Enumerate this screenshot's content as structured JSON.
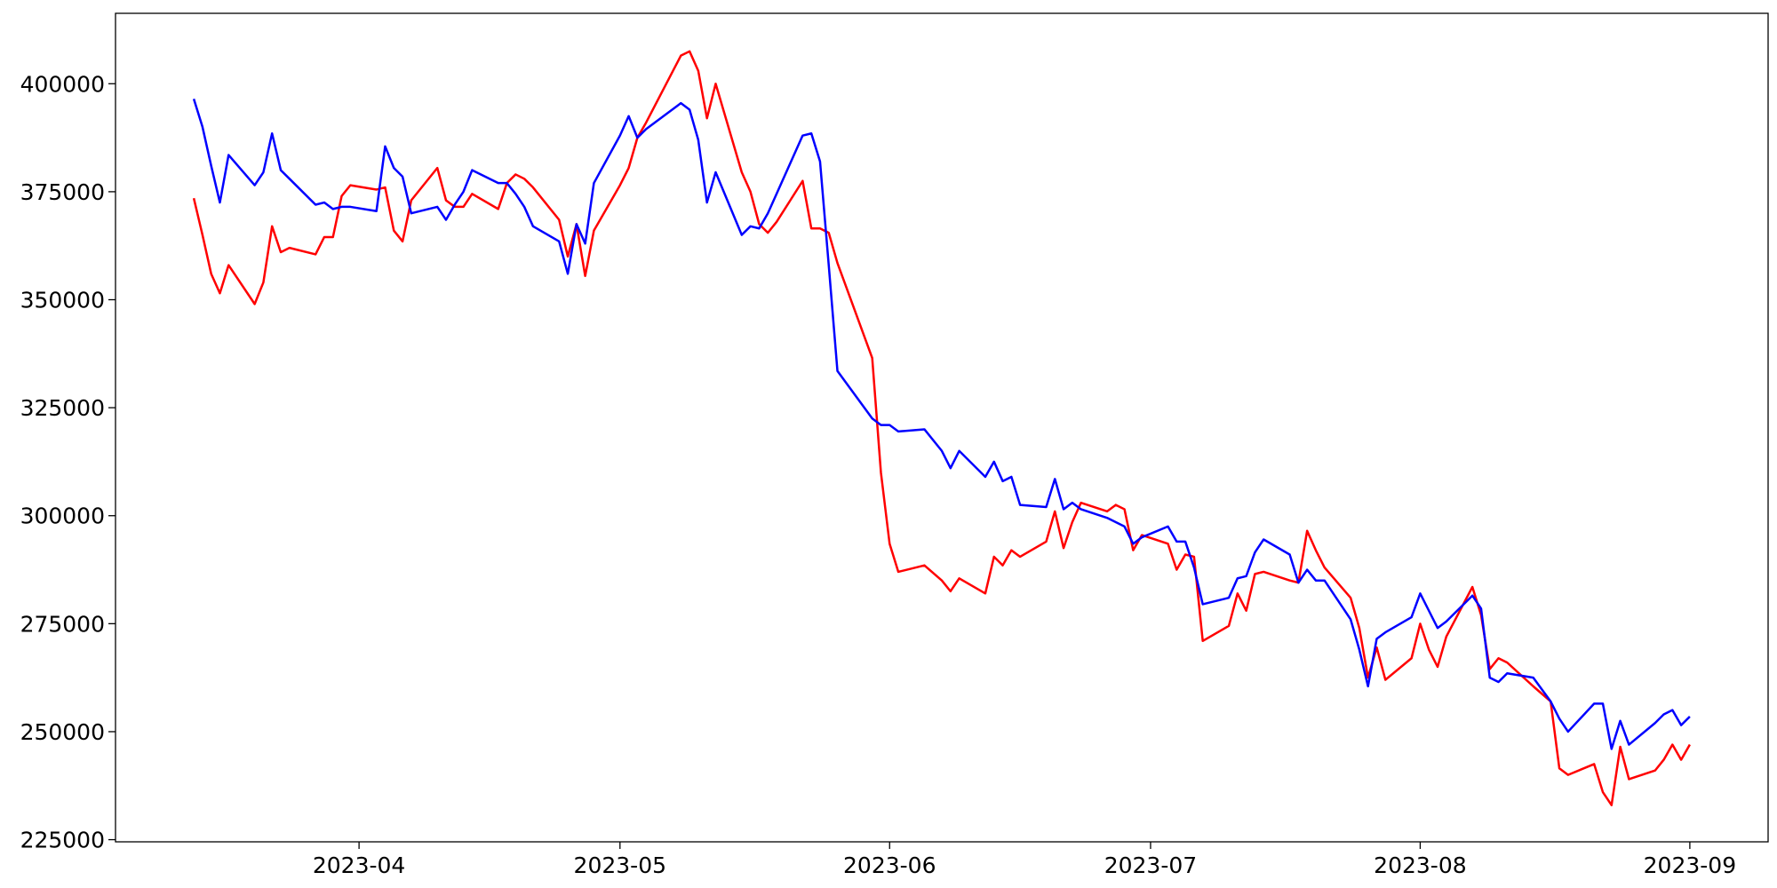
{
  "chart_data": {
    "type": "line",
    "x": [
      "2023-03-13",
      "2023-03-14",
      "2023-03-15",
      "2023-03-16",
      "2023-03-17",
      "2023-03-20",
      "2023-03-21",
      "2023-03-22",
      "2023-03-23",
      "2023-03-24",
      "2023-03-27",
      "2023-03-28",
      "2023-03-29",
      "2023-03-30",
      "2023-03-31",
      "2023-04-03",
      "2023-04-04",
      "2023-04-05",
      "2023-04-06",
      "2023-04-07",
      "2023-04-10",
      "2023-04-11",
      "2023-04-12",
      "2023-04-13",
      "2023-04-14",
      "2023-04-17",
      "2023-04-18",
      "2023-04-19",
      "2023-04-20",
      "2023-04-21",
      "2023-04-24",
      "2023-04-25",
      "2023-04-26",
      "2023-04-27",
      "2023-04-28",
      "2023-05-01",
      "2023-05-02",
      "2023-05-03",
      "2023-05-04",
      "2023-05-08",
      "2023-05-09",
      "2023-05-10",
      "2023-05-11",
      "2023-05-12",
      "2023-05-15",
      "2023-05-16",
      "2023-05-17",
      "2023-05-18",
      "2023-05-19",
      "2023-05-22",
      "2023-05-23",
      "2023-05-24",
      "2023-05-25",
      "2023-05-26",
      "2023-05-30",
      "2023-05-31",
      "2023-06-01",
      "2023-06-02",
      "2023-06-05",
      "2023-06-07",
      "2023-06-08",
      "2023-06-09",
      "2023-06-12",
      "2023-06-13",
      "2023-06-14",
      "2023-06-15",
      "2023-06-16",
      "2023-06-19",
      "2023-06-20",
      "2023-06-21",
      "2023-06-22",
      "2023-06-23",
      "2023-06-26",
      "2023-06-27",
      "2023-06-28",
      "2023-06-29",
      "2023-06-30",
      "2023-07-03",
      "2023-07-04",
      "2023-07-05",
      "2023-07-06",
      "2023-07-07",
      "2023-07-10",
      "2023-07-11",
      "2023-07-12",
      "2023-07-13",
      "2023-07-14",
      "2023-07-17",
      "2023-07-18",
      "2023-07-19",
      "2023-07-20",
      "2023-07-21",
      "2023-07-24",
      "2023-07-25",
      "2023-07-26",
      "2023-07-27",
      "2023-07-28",
      "2023-07-31",
      "2023-08-01",
      "2023-08-02",
      "2023-08-03",
      "2023-08-04",
      "2023-08-07",
      "2023-08-08",
      "2023-08-09",
      "2023-08-10",
      "2023-08-11",
      "2023-08-14",
      "2023-08-16",
      "2023-08-17",
      "2023-08-18",
      "2023-08-21",
      "2023-08-22",
      "2023-08-23",
      "2023-08-24",
      "2023-08-25",
      "2023-08-28",
      "2023-08-29",
      "2023-08-30",
      "2023-08-31",
      "2023-09-01"
    ],
    "series": [
      {
        "color": "#ff0000",
        "values": [
          373500,
          365000,
          356000,
          351500,
          358000,
          349000,
          354000,
          367000,
          361000,
          362000,
          360500,
          364500,
          364500,
          374000,
          376500,
          375500,
          376000,
          366000,
          363500,
          373000,
          380500,
          373000,
          371500,
          371500,
          374500,
          371000,
          377000,
          379000,
          378000,
          376000,
          368500,
          360000,
          367500,
          355500,
          366000,
          376500,
          380500,
          387500,
          391000,
          406500,
          407500,
          403000,
          392000,
          400000,
          379500,
          375000,
          367500,
          365500,
          368000,
          377500,
          366500,
          366500,
          365500,
          358500,
          336500,
          310000,
          293500,
          287000,
          288500,
          285000,
          282500,
          285500,
          282000,
          290500,
          288500,
          292000,
          290500,
          294000,
          301000,
          292500,
          298500,
          303000,
          301000,
          302500,
          301500,
          292000,
          295500,
          293500,
          287500,
          291000,
          290500,
          271000,
          274500,
          282000,
          278000,
          286500,
          287000,
          285000,
          284500,
          296500,
          292000,
          288000,
          281000,
          274000,
          262500,
          269500,
          262000,
          267000,
          275000,
          269000,
          265000,
          272000,
          283500,
          277000,
          264500,
          267000,
          266000,
          260500,
          257000,
          241500,
          240000,
          242500,
          236000,
          233000,
          246500,
          239000,
          241000,
          243500,
          247000,
          243500,
          247000
        ]
      },
      {
        "color": "#0000ff",
        "values": [
          396500,
          390000,
          381000,
          372500,
          383500,
          376500,
          379500,
          388500,
          380000,
          378000,
          372000,
          372500,
          371000,
          371500,
          371500,
          370500,
          385500,
          380500,
          378500,
          370000,
          371500,
          368500,
          372000,
          375000,
          380000,
          377000,
          377000,
          374500,
          371500,
          367000,
          363500,
          356000,
          367500,
          363000,
          377000,
          388000,
          392500,
          387500,
          389500,
          395500,
          394000,
          387000,
          372500,
          379500,
          365000,
          367000,
          366500,
          370000,
          374500,
          388000,
          388500,
          382000,
          358000,
          333500,
          322500,
          321000,
          321000,
          319500,
          320000,
          315000,
          311000,
          315000,
          309000,
          312500,
          308000,
          309000,
          302500,
          302000,
          308500,
          301500,
          303000,
          301500,
          299500,
          298500,
          297500,
          293500,
          295000,
          297500,
          294000,
          294000,
          288000,
          279500,
          281000,
          285500,
          286000,
          291500,
          294500,
          291000,
          284500,
          287500,
          285000,
          285000,
          276000,
          269000,
          260500,
          271500,
          273000,
          276500,
          282000,
          278000,
          274000,
          275500,
          281500,
          278500,
          262500,
          261500,
          263500,
          262500,
          257000,
          253000,
          250000,
          256500,
          256500,
          246000,
          252500,
          247000,
          252000,
          254000,
          255000,
          251500,
          253500
        ]
      }
    ],
    "xlim": [
      "2023-03-04",
      "2023-09-10"
    ],
    "xticks": [
      {
        "value": "2023-04-01",
        "label": "2023-04"
      },
      {
        "value": "2023-05-01",
        "label": "2023-05"
      },
      {
        "value": "2023-06-01",
        "label": "2023-06"
      },
      {
        "value": "2023-07-01",
        "label": "2023-07"
      },
      {
        "value": "2023-08-01",
        "label": "2023-08"
      },
      {
        "value": "2023-09-01",
        "label": "2023-09"
      }
    ],
    "ylim": [
      224500,
      416300
    ],
    "yticks": [
      225000,
      250000,
      275000,
      300000,
      325000,
      350000,
      375000,
      400000
    ]
  }
}
